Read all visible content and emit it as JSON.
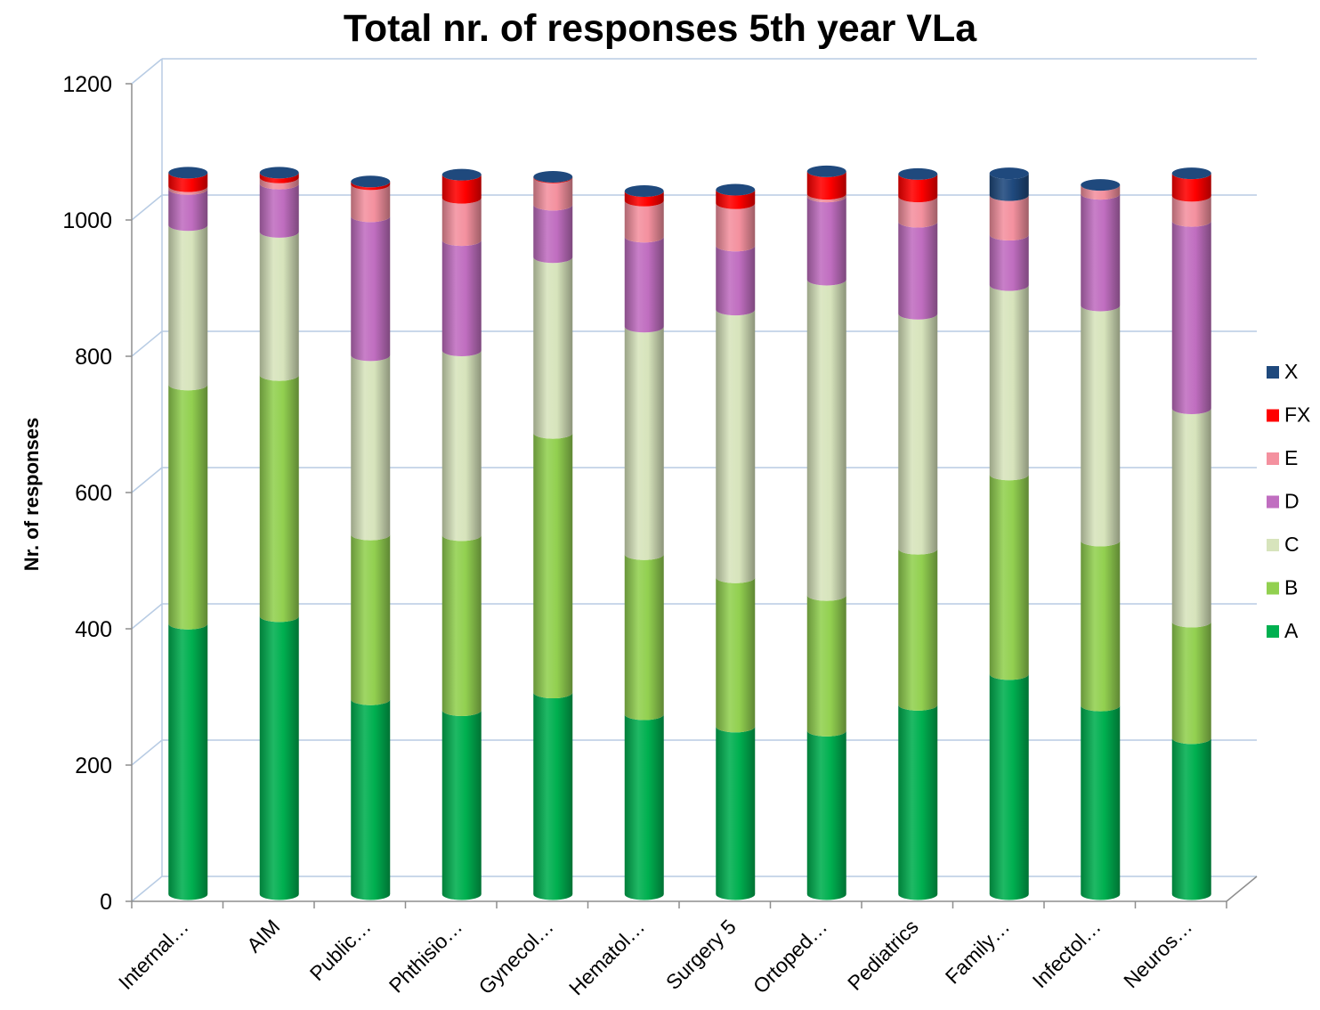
{
  "chart_data": {
    "type": "bar",
    "stacked": true,
    "style": "3d-cylinder",
    "title": "Total nr. of responses 5th year VLa",
    "xlabel": "",
    "ylabel": "Nr. of responses",
    "ylim": [
      0,
      1200
    ],
    "yticks": [
      0,
      200,
      400,
      600,
      800,
      1000,
      1200
    ],
    "grid": true,
    "legend_position": "right",
    "categories": [
      "Internal…",
      "AIM",
      "Public…",
      "Phthisio…",
      "Gynecol…",
      "Hematol…",
      "Surgery 5",
      "Ortoped…",
      "Pediatrics",
      "Family…",
      "Infectol…",
      "Neuros…"
    ],
    "series": [
      {
        "name": "A",
        "color": "#00b050",
        "values": [
          397,
          408,
          286,
          270,
          296,
          264,
          246,
          240,
          278,
          323,
          277,
          229
        ]
      },
      {
        "name": "B",
        "color": "#92d050",
        "values": [
          351,
          354,
          242,
          257,
          381,
          235,
          219,
          199,
          229,
          293,
          242,
          171
        ]
      },
      {
        "name": "C",
        "color": "#d7e4bc",
        "values": [
          234,
          210,
          263,
          271,
          258,
          334,
          393,
          463,
          345,
          278,
          345,
          313
        ]
      },
      {
        "name": "D",
        "color": "#c06ec0",
        "values": [
          53,
          71,
          204,
          162,
          77,
          132,
          94,
          122,
          135,
          74,
          164,
          275
        ]
      },
      {
        "name": "E",
        "color": "#f4919f",
        "values": [
          4,
          9,
          47,
          62,
          40,
          53,
          62,
          4,
          37,
          58,
          13,
          37
        ]
      },
      {
        "name": "FX",
        "color": "#ff0000",
        "values": [
          20,
          7,
          4,
          34,
          1,
          14,
          20,
          33,
          33,
          0,
          0,
          33
        ]
      },
      {
        "name": "X",
        "color": "#1f497d",
        "values": [
          0,
          0,
          0,
          0,
          0,
          0,
          0,
          0,
          0,
          32,
          0,
          0
        ]
      }
    ]
  }
}
